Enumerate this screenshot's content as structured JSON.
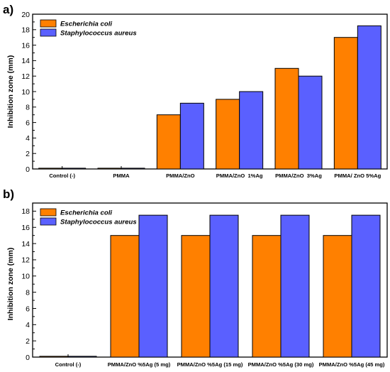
{
  "colors": {
    "ecoli": "#ff8000",
    "saureus": "#5a60ff"
  },
  "chart_data": [
    {
      "type": "bar",
      "panel_label": "a)",
      "ylabel": "Inhibition zone (mm)",
      "ylim": [
        0,
        20
      ],
      "yticks": [
        "0",
        "2",
        "4",
        "6",
        "8",
        "10",
        "12",
        "14",
        "16",
        "18",
        "20"
      ],
      "legend_position": "top-left",
      "categories": [
        "Control (-)",
        "PMMA",
        "PMMA/ZnO",
        "PMMA/ZnO  1%Ag",
        "PMMA/ZnO  3%Ag",
        "PMMA/ ZnO 5%Ag"
      ],
      "series": [
        {
          "name": "Escherichia coli",
          "values": [
            0.1,
            0.1,
            7,
            9,
            13,
            17
          ]
        },
        {
          "name": "Staphylococcus aureus",
          "values": [
            0.1,
            0.1,
            8.5,
            10,
            12,
            18.5
          ]
        }
      ]
    },
    {
      "type": "bar",
      "panel_label": "b)",
      "ylabel": "Inhibition zone (mm)",
      "ylim": [
        0,
        19
      ],
      "yticks": [
        "0",
        "2",
        "4",
        "6",
        "8",
        "10",
        "12",
        "14",
        "16",
        "18"
      ],
      "legend_position": "top-left",
      "categories": [
        "Control (-)",
        "PMMA/ZnO %5Ag (5 mg)",
        "PMMA/ZnO %5Ag (15 mg)",
        "PMMA/ZnO %5Ag (30 mg)",
        "PMMA/ZnO %5Ag (45 mg)"
      ],
      "series": [
        {
          "name": "Escherichia coli",
          "values": [
            0.1,
            15,
            15,
            15,
            15
          ]
        },
        {
          "name": "Staphylococcus aureus",
          "values": [
            0.1,
            17.5,
            17.5,
            17.5,
            17.5
          ]
        }
      ]
    }
  ]
}
